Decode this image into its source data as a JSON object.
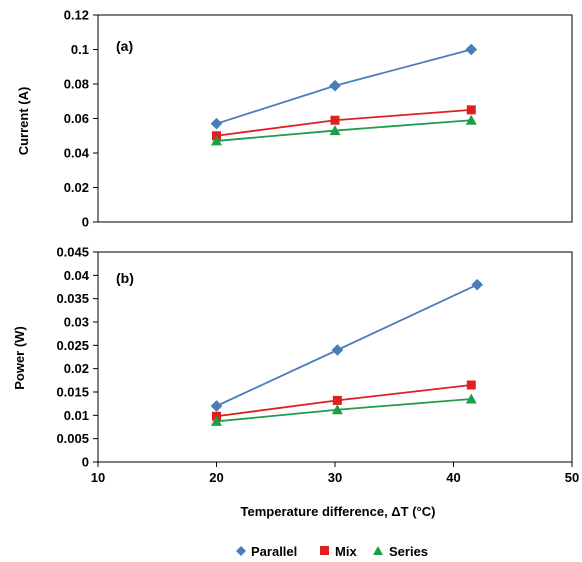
{
  "chart_data": [
    {
      "type": "line",
      "panel_label": "(a)",
      "ylabel": "Current (A)",
      "xlabel": "",
      "xlim": [
        10,
        50
      ],
      "ylim": [
        0,
        0.12
      ],
      "y_ticks": [
        "0",
        "0.02",
        "0.04",
        "0.06",
        "0.08",
        "0.1",
        "0.12"
      ],
      "y_tick_values": [
        0,
        0.02,
        0.04,
        0.06,
        0.08,
        0.1,
        0.12
      ],
      "series": [
        {
          "name": "Parallel",
          "color": "#4a7ebb",
          "marker": "diamond",
          "x": [
            20,
            30,
            41.5
          ],
          "y": [
            0.057,
            0.079,
            0.1
          ]
        },
        {
          "name": "Mix",
          "color": "#e02020",
          "marker": "square",
          "x": [
            20,
            30,
            41.5
          ],
          "y": [
            0.05,
            0.059,
            0.065
          ]
        },
        {
          "name": "Series",
          "color": "#1f9e4a",
          "marker": "triangle",
          "x": [
            20,
            30,
            41.5
          ],
          "y": [
            0.047,
            0.053,
            0.059
          ]
        }
      ]
    },
    {
      "type": "line",
      "panel_label": "(b)",
      "ylabel": "Power (W)",
      "xlabel": "Temperature difference, ΔT (°C)",
      "xlim": [
        10,
        50
      ],
      "ylim": [
        0,
        0.045
      ],
      "x_ticks": [
        "10",
        "20",
        "30",
        "40",
        "50"
      ],
      "x_tick_values": [
        10,
        20,
        30,
        40,
        50
      ],
      "y_ticks": [
        "0",
        "0.005",
        "0.01",
        "0.015",
        "0.02",
        "0.025",
        "0.03",
        "0.035",
        "0.04",
        "0.045"
      ],
      "y_tick_values": [
        0,
        0.005,
        0.01,
        0.015,
        0.02,
        0.025,
        0.03,
        0.035,
        0.04,
        0.045
      ],
      "series": [
        {
          "name": "Parallel",
          "color": "#4a7ebb",
          "marker": "diamond",
          "x": [
            20,
            30.2,
            42
          ],
          "y": [
            0.012,
            0.024,
            0.038
          ]
        },
        {
          "name": "Mix",
          "color": "#e02020",
          "marker": "square",
          "x": [
            20,
            30.2,
            41.5
          ],
          "y": [
            0.0098,
            0.0132,
            0.0165
          ]
        },
        {
          "name": "Series",
          "color": "#1f9e4a",
          "marker": "triangle",
          "x": [
            20,
            30.2,
            41.5
          ],
          "y": [
            0.0087,
            0.0112,
            0.0135
          ]
        }
      ]
    }
  ],
  "legend": {
    "placement": "bottom",
    "items": [
      {
        "label": "Parallel",
        "color": "#4a7ebb",
        "marker": "diamond"
      },
      {
        "label": "Mix",
        "color": "#e02020",
        "marker": "square"
      },
      {
        "label": "Series",
        "color": "#1f9e4a",
        "marker": "triangle"
      }
    ]
  }
}
